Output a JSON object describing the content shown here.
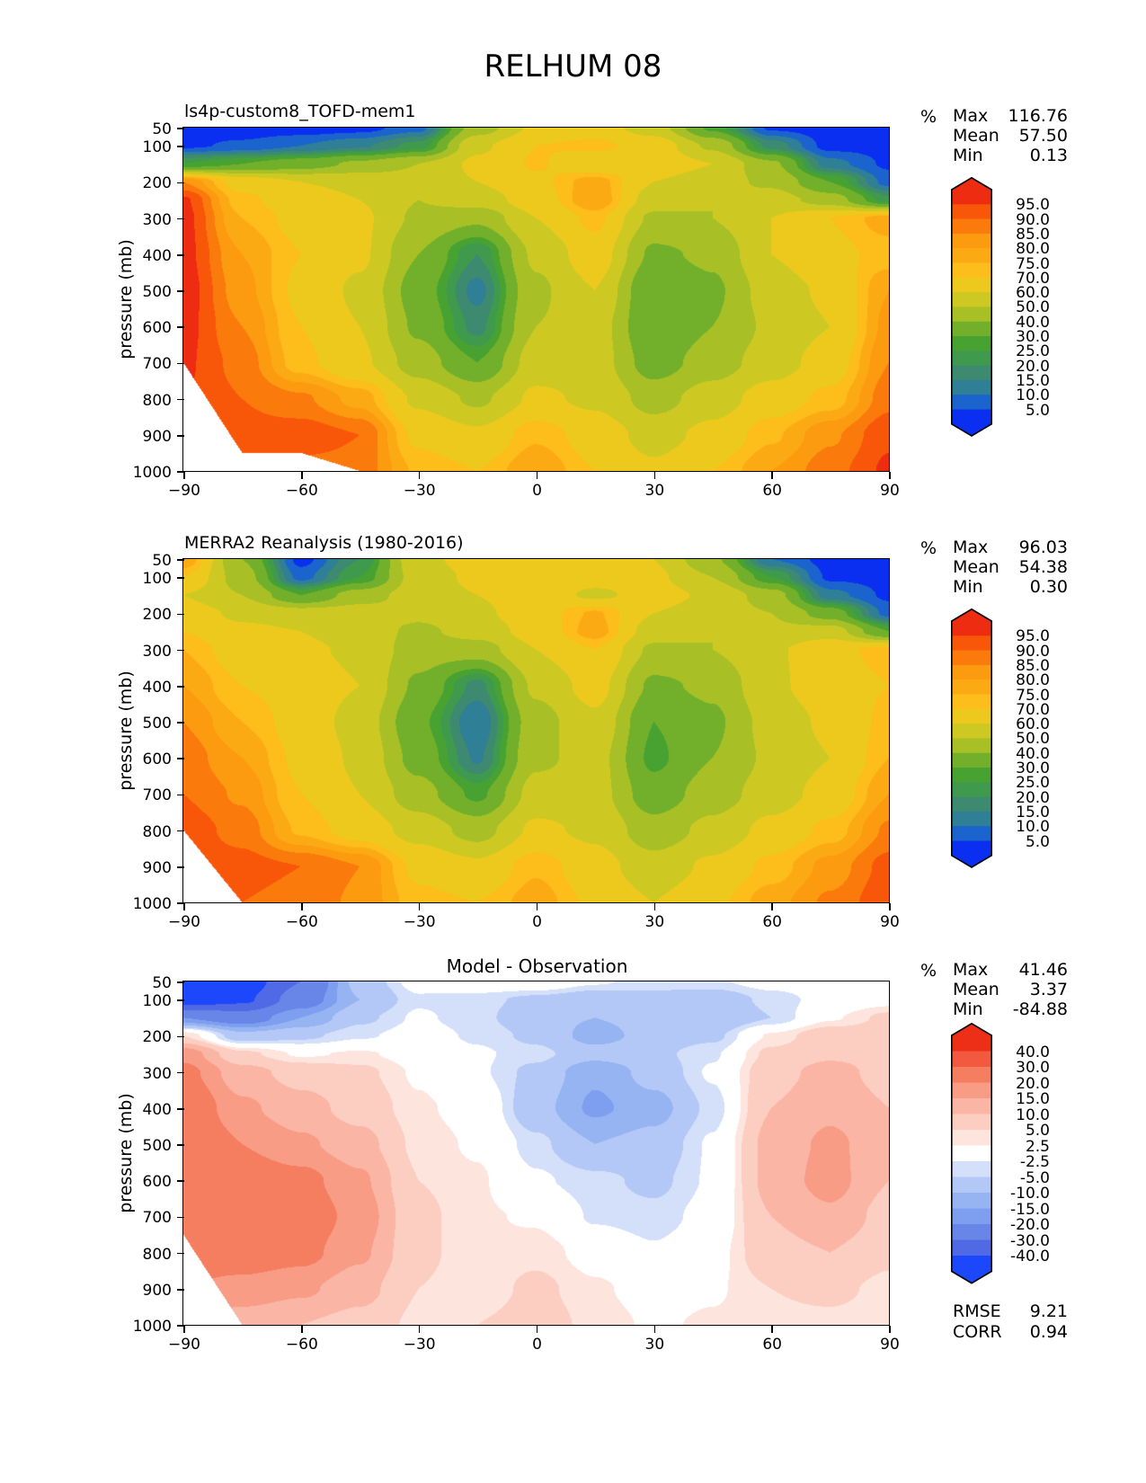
{
  "title": "RELHUM 08",
  "axis": {
    "ylabel": "pressure (mb)",
    "x_tick_labels": [
      "−90",
      "−60",
      "−30",
      "0",
      "30",
      "60",
      "90"
    ],
    "x_tick_values": [
      -90,
      -60,
      -30,
      0,
      30,
      60,
      90
    ],
    "y_tick_labels": [
      "50",
      "100",
      "200",
      "300",
      "400",
      "500",
      "600",
      "700",
      "800",
      "900",
      "1000"
    ],
    "y_tick_values": [
      50,
      100,
      200,
      300,
      400,
      500,
      600,
      700,
      800,
      900,
      1000
    ]
  },
  "panels": [
    {
      "title": "ls4p-custom8_TOFD-mem1",
      "title_align": "left",
      "unit": "%",
      "stats": [
        {
          "label": "Max",
          "value": "116.76"
        },
        {
          "label": "Mean",
          "value": "57.50"
        },
        {
          "label": "Min",
          "value": "0.13"
        }
      ]
    },
    {
      "title": "MERRA2 Reanalysis (1980-2016)",
      "title_align": "left",
      "unit": "%",
      "stats": [
        {
          "label": "Max",
          "value": "96.03"
        },
        {
          "label": "Mean",
          "value": "54.38"
        },
        {
          "label": "Min",
          "value": "0.30"
        }
      ]
    },
    {
      "title": "Model - Observation",
      "title_align": "center",
      "unit": "%",
      "stats": [
        {
          "label": "Max",
          "value": "41.46"
        },
        {
          "label": "Mean",
          "value": "3.37"
        },
        {
          "label": "Min",
          "value": "-84.88"
        }
      ],
      "extra": [
        {
          "label": "RMSE",
          "value": "9.21"
        },
        {
          "label": "CORR",
          "value": "0.94"
        }
      ]
    }
  ],
  "chart_data": [
    {
      "type": "heatmap",
      "title": "ls4p-custom8_TOFD-mem1",
      "xlabel": "",
      "ylabel": "pressure (mb)",
      "xlim": [
        -90,
        90
      ],
      "ylim": [
        1000,
        50
      ],
      "units": "%",
      "x": [
        -90,
        -75,
        -60,
        -45,
        -30,
        -15,
        0,
        15,
        30,
        45,
        60,
        75,
        90
      ],
      "y": [
        50,
        100,
        150,
        200,
        250,
        300,
        400,
        500,
        600,
        700,
        800,
        900,
        1000
      ],
      "levels": [
        5,
        10,
        15,
        20,
        25,
        30,
        40,
        50,
        60,
        70,
        75,
        80,
        85,
        90,
        95
      ],
      "colors": [
        "#0b2ff0",
        "#1b64cd",
        "#2f7f97",
        "#3d8a70",
        "#3f9a4e",
        "#48a232",
        "#72b02b",
        "#a8c026",
        "#cdc922",
        "#ecc91c",
        "#fdbd1b",
        "#fcaa13",
        "#fc9a10",
        "#fa7b0c",
        "#f8570a",
        "#ee2c12"
      ],
      "colorbar_labels": [
        "95.0",
        "90.0",
        "85.0",
        "80.0",
        "75.0",
        "70.0",
        "60.0",
        "50.0",
        "40.0",
        "30.0",
        "25.0",
        "20.0",
        "15.0",
        "10.0",
        "5.0"
      ],
      "surface_cutoff": [
        700,
        950,
        950,
        1000,
        1000,
        1000,
        1000,
        1000,
        1000,
        1000,
        1000,
        1000,
        1000
      ],
      "values": [
        [
          2,
          2,
          2,
          3,
          8,
          45,
          62,
          65,
          55,
          28,
          4,
          2,
          2
        ],
        [
          4,
          6,
          10,
          14,
          22,
          58,
          70,
          72,
          66,
          48,
          18,
          3,
          3
        ],
        [
          25,
          30,
          35,
          42,
          50,
          62,
          71,
          62,
          67,
          60,
          42,
          12,
          4
        ],
        [
          85,
          66,
          60,
          58,
          54,
          60,
          68,
          78,
          60,
          54,
          48,
          30,
          8
        ],
        [
          96,
          72,
          64,
          60,
          50,
          55,
          65,
          80,
          55,
          50,
          55,
          45,
          22
        ],
        [
          97,
          75,
          67,
          62,
          48,
          42,
          60,
          72,
          48,
          50,
          60,
          70,
          78
        ],
        [
          97,
          80,
          70,
          62,
          40,
          20,
          52,
          66,
          38,
          42,
          60,
          68,
          72
        ],
        [
          98,
          82,
          68,
          58,
          35,
          13,
          48,
          60,
          30,
          38,
          55,
          62,
          80
        ],
        [
          97,
          85,
          70,
          60,
          38,
          18,
          50,
          55,
          30,
          40,
          52,
          60,
          82
        ],
        [
          96,
          88,
          72,
          62,
          45,
          30,
          55,
          55,
          35,
          45,
          55,
          65,
          85
        ],
        [
          95,
          90,
          86,
          78,
          58,
          48,
          62,
          58,
          46,
          55,
          65,
          72,
          88
        ],
        [
          95,
          92,
          93,
          90,
          68,
          62,
          74,
          66,
          56,
          63,
          74,
          84,
          94
        ],
        [
          95,
          92,
          88,
          88,
          74,
          70,
          80,
          70,
          62,
          70,
          80,
          88,
          96
        ]
      ]
    },
    {
      "type": "heatmap",
      "title": "MERRA2 Reanalysis (1980-2016)",
      "xlabel": "",
      "ylabel": "pressure (mb)",
      "xlim": [
        -90,
        90
      ],
      "ylim": [
        1000,
        50
      ],
      "units": "%",
      "x": [
        -90,
        -75,
        -60,
        -45,
        -30,
        -15,
        0,
        15,
        30,
        45,
        60,
        75,
        90
      ],
      "y": [
        50,
        100,
        150,
        200,
        250,
        300,
        400,
        500,
        600,
        700,
        800,
        900,
        1000
      ],
      "levels": [
        5,
        10,
        15,
        20,
        25,
        30,
        40,
        50,
        60,
        70,
        75,
        80,
        85,
        90,
        95
      ],
      "colors": [
        "#0b2ff0",
        "#1b64cd",
        "#2f7f97",
        "#3d8a70",
        "#3f9a4e",
        "#48a232",
        "#72b02b",
        "#a8c026",
        "#cdc922",
        "#ecc91c",
        "#fdbd1b",
        "#fcaa13",
        "#fc9a10",
        "#fa7b0c",
        "#f8570a",
        "#ee2c12"
      ],
      "colorbar_labels": [
        "95.0",
        "90.0",
        "85.0",
        "80.0",
        "75.0",
        "70.0",
        "60.0",
        "50.0",
        "40.0",
        "30.0",
        "25.0",
        "20.0",
        "15.0",
        "10.0",
        "5.0"
      ],
      "surface_cutoff": [
        800,
        1000,
        1000,
        1000,
        1000,
        1000,
        1000,
        1000,
        1000,
        1000,
        1000,
        1000,
        1000
      ],
      "values": [
        [
          80,
          40,
          3,
          20,
          58,
          63,
          66,
          64,
          60,
          42,
          10,
          3,
          3
        ],
        [
          70,
          45,
          8,
          25,
          55,
          62,
          66,
          64,
          62,
          50,
          25,
          4,
          3
        ],
        [
          60,
          50,
          30,
          45,
          55,
          60,
          66,
          58,
          64,
          58,
          45,
          12,
          4
        ],
        [
          65,
          58,
          55,
          55,
          52,
          58,
          66,
          76,
          60,
          55,
          50,
          35,
          8
        ],
        [
          70,
          62,
          60,
          55,
          48,
          54,
          64,
          78,
          55,
          50,
          52,
          55,
          30
        ],
        [
          75,
          65,
          62,
          58,
          45,
          45,
          60,
          70,
          48,
          50,
          58,
          68,
          72
        ],
        [
          80,
          70,
          66,
          60,
          38,
          18,
          52,
          64,
          38,
          42,
          58,
          66,
          70
        ],
        [
          85,
          75,
          66,
          56,
          32,
          10,
          46,
          58,
          30,
          38,
          54,
          62,
          72
        ],
        [
          88,
          80,
          68,
          58,
          36,
          14,
          48,
          54,
          28,
          40,
          52,
          60,
          75
        ],
        [
          90,
          84,
          70,
          60,
          44,
          28,
          54,
          54,
          34,
          45,
          55,
          64,
          80
        ],
        [
          93,
          88,
          74,
          66,
          56,
          46,
          62,
          58,
          44,
          53,
          63,
          72,
          86
        ],
        [
          94,
          92,
          90,
          85,
          68,
          62,
          74,
          64,
          54,
          62,
          72,
          82,
          92
        ],
        [
          94,
          90,
          88,
          84,
          72,
          70,
          78,
          68,
          60,
          68,
          78,
          86,
          94
        ]
      ]
    },
    {
      "type": "heatmap",
      "title": "Model - Observation",
      "xlabel": "",
      "ylabel": "pressure (mb)",
      "xlim": [
        -90,
        90
      ],
      "ylim": [
        1000,
        50
      ],
      "units": "%",
      "x": [
        -90,
        -75,
        -60,
        -45,
        -30,
        -15,
        0,
        15,
        30,
        45,
        60,
        75,
        90
      ],
      "y": [
        50,
        100,
        150,
        200,
        250,
        300,
        400,
        500,
        600,
        700,
        800,
        900,
        1000
      ],
      "levels": [
        -40,
        -30,
        -20,
        -15,
        -10,
        -5,
        -2.5,
        2.5,
        5,
        10,
        15,
        20,
        30,
        40
      ],
      "colors": [
        "#1c47fa",
        "#5069e5",
        "#6886e8",
        "#7e9ff0",
        "#97b4f2",
        "#b3c8f6",
        "#d4e0fa",
        "#ffffff",
        "#fde4dd",
        "#fccdc1",
        "#fab5a4",
        "#f89c85",
        "#f57e60",
        "#f3593e",
        "#ee2f17"
      ],
      "colorbar_labels": [
        "40.0",
        "30.0",
        "20.0",
        "15.0",
        "10.0",
        "5.0",
        "2.5",
        "-2.5",
        "-5.0",
        "-10.0",
        "-15.0",
        "-20.0",
        "-30.0",
        "-40.0"
      ],
      "surface_cutoff": [
        750,
        1000,
        1000,
        1000,
        1000,
        1000,
        1000,
        1000,
        1000,
        1000,
        1000,
        1000,
        1000
      ],
      "values": [
        [
          -48,
          -46,
          -30,
          -8,
          -1,
          1,
          1,
          -2,
          -4,
          -3,
          -1,
          0,
          0
        ],
        [
          -46,
          -42,
          -25,
          -10,
          -3,
          -4,
          -6,
          -8,
          -6,
          -8,
          -4,
          -1,
          1
        ],
        [
          -20,
          -25,
          -15,
          -6,
          -2,
          -4,
          -8,
          -10,
          -8,
          -10,
          -5,
          2,
          6
        ],
        [
          5,
          -8,
          -6,
          -3,
          -1,
          -3,
          -6,
          -12,
          -8,
          -6,
          3,
          8,
          7
        ],
        [
          18,
          6,
          2,
          3,
          1,
          -2,
          -4,
          -8,
          -6,
          -3,
          6,
          9,
          8
        ],
        [
          22,
          12,
          8,
          6,
          2,
          -2,
          -6,
          -14,
          -8,
          -2,
          8,
          12,
          8
        ],
        [
          26,
          16,
          12,
          8,
          3,
          1,
          -8,
          -16,
          -12,
          -4,
          10,
          14,
          10
        ],
        [
          28,
          20,
          16,
          12,
          4,
          2,
          -4,
          -10,
          -8,
          -2,
          12,
          16,
          12
        ],
        [
          30,
          24,
          22,
          16,
          5,
          3,
          -2,
          -4,
          -6,
          -2,
          12,
          17,
          10
        ],
        [
          28,
          26,
          24,
          18,
          6,
          3,
          2,
          -3,
          -4,
          -1,
          10,
          14,
          8
        ],
        [
          24,
          24,
          22,
          16,
          6,
          3,
          4,
          1,
          -2,
          1,
          8,
          10,
          6
        ],
        [
          20,
          18,
          16,
          12,
          5,
          3,
          6,
          3,
          1,
          2,
          5,
          6,
          4
        ],
        [
          14,
          12,
          10,
          8,
          4,
          5,
          7,
          4,
          2,
          3,
          4,
          4,
          3
        ]
      ]
    }
  ]
}
